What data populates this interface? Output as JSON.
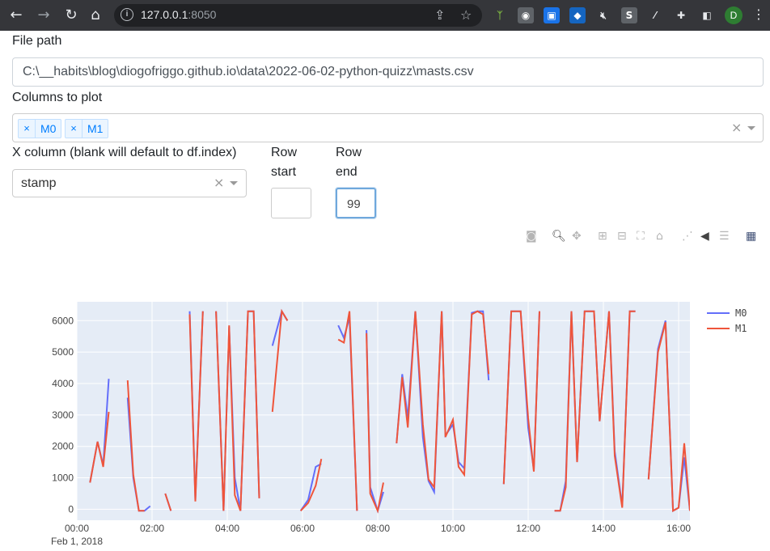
{
  "browser": {
    "url_host": "127.0.0.1",
    "url_port": ":8050",
    "profile_initial": "D"
  },
  "form": {
    "file_path_label": "File path",
    "file_path_value": "C:\\__habits\\blog\\diogofriggo.github.io\\data\\2022-06-02-python-quizz\\masts.csv",
    "columns_label": "Columns to plot",
    "columns_selected": [
      "M0",
      "M1"
    ],
    "x_column_label": "X column (blank will default to df.index)",
    "x_column_value": "stamp",
    "row_start_label_1": "Row",
    "row_start_label_2": "start",
    "row_start_value": "",
    "row_end_label_1": "Row",
    "row_end_label_2": "end",
    "row_end_value": "99"
  },
  "modebar": {
    "icons": [
      "camera-icon",
      "zoom-icon",
      "pan-icon",
      "zoom-in-icon",
      "zoom-out-icon",
      "autoscale-icon",
      "reset-axes-icon",
      "spike-lines-icon",
      "hover-closest-icon",
      "hover-compare-icon",
      "plotly-logo-icon"
    ]
  },
  "chart_data": {
    "type": "line",
    "x_unit": "hours since 00:00 Feb 1, 2018",
    "x_tick_labels": [
      "00:00",
      "02:00",
      "04:00",
      "06:00",
      "08:00",
      "10:00",
      "12:00",
      "14:00",
      "16:00"
    ],
    "x_tick_values": [
      0,
      2,
      4,
      6,
      8,
      10,
      12,
      14,
      16
    ],
    "x_sublabel": "Feb 1, 2018",
    "xlim": [
      0,
      16.3
    ],
    "ylim": [
      -350,
      6600
    ],
    "y_tick_values": [
      0,
      1000,
      2000,
      3000,
      4000,
      5000,
      6000
    ],
    "y_tick_labels": [
      "0",
      "1000",
      "2000",
      "3000",
      "4000",
      "5000",
      "6000"
    ],
    "legend_position": "right",
    "colors": {
      "M0": "#636efa",
      "M1": "#ef553b",
      "plot_bg": "#e5ecf6"
    },
    "series": [
      {
        "name": "M0",
        "segments": [
          [
            [
              0.35,
              850
            ],
            [
              0.55,
              2150
            ],
            [
              0.7,
              1400
            ],
            [
              0.85,
              4150
            ]
          ],
          [
            [
              1.35,
              3550
            ],
            [
              1.5,
              1000
            ],
            [
              1.65,
              -50
            ],
            [
              1.8,
              -50
            ],
            [
              1.95,
              100
            ]
          ],
          [
            [
              2.35,
              500
            ],
            [
              2.5,
              -50
            ]
          ],
          [
            [
              3.0,
              6300
            ],
            [
              3.15,
              300
            ],
            [
              3.35,
              6300
            ]
          ],
          [
            [
              3.7,
              6300
            ],
            [
              3.9,
              -50
            ],
            [
              4.05,
              5800
            ],
            [
              4.2,
              1000
            ],
            [
              4.35,
              -50
            ],
            [
              4.55,
              6300
            ],
            [
              4.7,
              6300
            ],
            [
              4.85,
              350
            ]
          ],
          [
            [
              5.2,
              5200
            ],
            [
              5.45,
              6300
            ],
            [
              5.6,
              6000
            ]
          ],
          [
            [
              5.95,
              -50
            ],
            [
              6.15,
              300
            ],
            [
              6.35,
              1350
            ],
            [
              6.5,
              1450
            ]
          ],
          [
            [
              6.95,
              5850
            ],
            [
              7.1,
              5450
            ],
            [
              7.25,
              6100
            ],
            [
              7.45,
              -50
            ]
          ],
          [
            [
              7.7,
              5700
            ],
            [
              7.8,
              700
            ],
            [
              8.0,
              -50
            ],
            [
              8.15,
              550
            ]
          ],
          [
            [
              8.5,
              2100
            ],
            [
              8.65,
              4300
            ],
            [
              8.8,
              2900
            ],
            [
              9.0,
              6300
            ],
            [
              9.2,
              2300
            ],
            [
              9.35,
              900
            ],
            [
              9.5,
              550
            ],
            [
              9.7,
              6300
            ],
            [
              9.8,
              2350
            ],
            [
              10.0,
              2700
            ],
            [
              10.15,
              1500
            ],
            [
              10.3,
              1300
            ],
            [
              10.5,
              6250
            ],
            [
              10.65,
              6300
            ],
            [
              10.8,
              6300
            ],
            [
              10.95,
              4100
            ]
          ],
          [
            [
              11.35,
              800
            ],
            [
              11.55,
              6300
            ],
            [
              11.8,
              6300
            ],
            [
              12.0,
              2600
            ],
            [
              12.15,
              1250
            ],
            [
              12.3,
              6300
            ]
          ],
          [
            [
              12.7,
              -50
            ],
            [
              12.85,
              -50
            ],
            [
              13.0,
              900
            ],
            [
              13.15,
              6300
            ],
            [
              13.3,
              1500
            ],
            [
              13.5,
              6300
            ],
            [
              13.75,
              6300
            ],
            [
              13.9,
              2800
            ],
            [
              14.15,
              6300
            ],
            [
              14.3,
              1850
            ],
            [
              14.5,
              100
            ],
            [
              14.7,
              6300
            ],
            [
              14.85,
              6300
            ]
          ],
          [
            [
              15.2,
              950
            ],
            [
              15.45,
              5100
            ],
            [
              15.65,
              6000
            ],
            [
              15.85,
              -50
            ],
            [
              16.0,
              50
            ],
            [
              16.15,
              1650
            ],
            [
              16.3,
              -50
            ],
            [
              16.45,
              1600
            ],
            [
              16.6,
              2600
            ]
          ]
        ]
      },
      {
        "name": "M1",
        "segments": [
          [
            [
              0.35,
              850
            ],
            [
              0.55,
              2150
            ],
            [
              0.7,
              1350
            ],
            [
              0.85,
              3100
            ]
          ],
          [
            [
              1.35,
              4100
            ],
            [
              1.5,
              1100
            ],
            [
              1.65,
              -50
            ],
            [
              1.8,
              -50
            ]
          ],
          [
            [
              2.35,
              500
            ],
            [
              2.5,
              -50
            ]
          ],
          [
            [
              3.0,
              6200
            ],
            [
              3.15,
              250
            ],
            [
              3.35,
              6300
            ]
          ],
          [
            [
              3.7,
              6300
            ],
            [
              3.9,
              -50
            ],
            [
              4.05,
              5850
            ],
            [
              4.2,
              450
            ],
            [
              4.35,
              -50
            ],
            [
              4.55,
              6300
            ],
            [
              4.7,
              6300
            ],
            [
              4.85,
              350
            ]
          ],
          [
            [
              5.2,
              3100
            ],
            [
              5.45,
              6300
            ],
            [
              5.6,
              6000
            ]
          ],
          [
            [
              5.95,
              -50
            ],
            [
              6.15,
              200
            ],
            [
              6.35,
              750
            ],
            [
              6.5,
              1600
            ]
          ],
          [
            [
              6.95,
              5400
            ],
            [
              7.1,
              5300
            ],
            [
              7.25,
              6300
            ],
            [
              7.45,
              -50
            ]
          ],
          [
            [
              7.7,
              5600
            ],
            [
              7.8,
              500
            ],
            [
              8.0,
              -50
            ],
            [
              8.15,
              850
            ]
          ],
          [
            [
              8.5,
              2100
            ],
            [
              8.65,
              4200
            ],
            [
              8.8,
              2600
            ],
            [
              9.0,
              6300
            ],
            [
              9.2,
              2700
            ],
            [
              9.35,
              950
            ],
            [
              9.5,
              700
            ],
            [
              9.7,
              6300
            ],
            [
              9.8,
              2300
            ],
            [
              10.0,
              2850
            ],
            [
              10.15,
              1350
            ],
            [
              10.3,
              1100
            ],
            [
              10.5,
              6200
            ],
            [
              10.65,
              6300
            ],
            [
              10.8,
              6200
            ],
            [
              10.95,
              4300
            ]
          ],
          [
            [
              11.35,
              800
            ],
            [
              11.55,
              6300
            ],
            [
              11.8,
              6300
            ],
            [
              12.0,
              2900
            ],
            [
              12.15,
              1200
            ],
            [
              12.3,
              6300
            ]
          ],
          [
            [
              12.7,
              -50
            ],
            [
              12.85,
              -50
            ],
            [
              13.0,
              700
            ],
            [
              13.15,
              6300
            ],
            [
              13.3,
              1500
            ],
            [
              13.5,
              6300
            ],
            [
              13.75,
              6300
            ],
            [
              13.9,
              2800
            ],
            [
              14.15,
              6300
            ],
            [
              14.3,
              1700
            ],
            [
              14.5,
              50
            ],
            [
              14.7,
              6300
            ],
            [
              14.85,
              6300
            ]
          ],
          [
            [
              15.2,
              950
            ],
            [
              15.45,
              5000
            ],
            [
              15.65,
              5950
            ],
            [
              15.85,
              -50
            ],
            [
              16.0,
              50
            ],
            [
              16.15,
              2100
            ],
            [
              16.3,
              -50
            ],
            [
              16.45,
              900
            ],
            [
              16.6,
              2300
            ]
          ]
        ]
      }
    ]
  }
}
